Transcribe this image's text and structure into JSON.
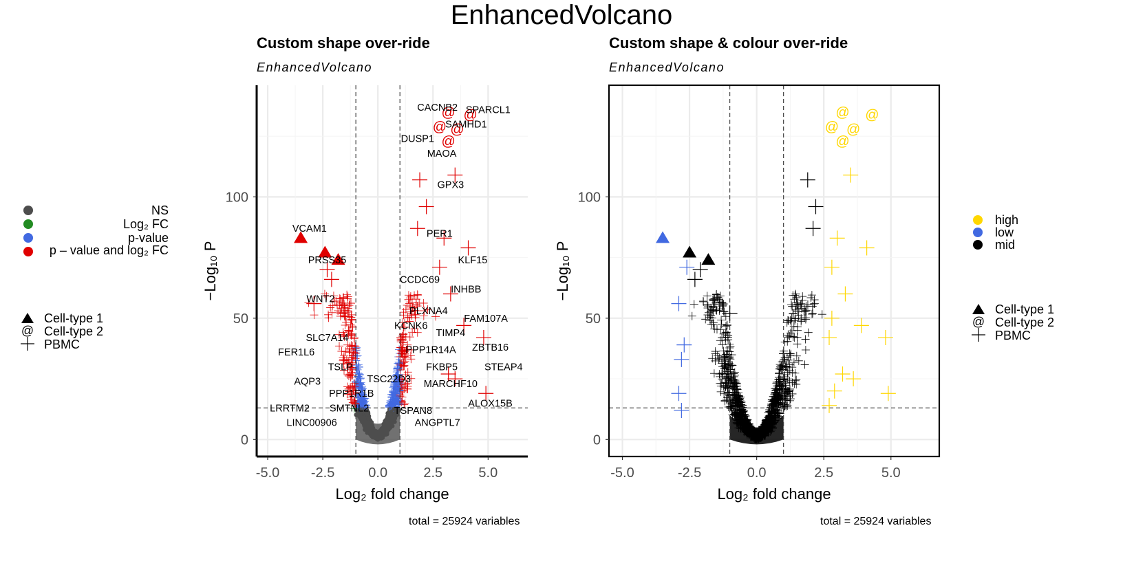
{
  "main_title": "EnhancedVolcano",
  "legend_left": {
    "colour_entries": [
      {
        "label": "NS",
        "color": "#4d4d4d"
      },
      {
        "label": "Log₂ FC",
        "color": "#228B22"
      },
      {
        "label": "p-value",
        "color": "#4169E1"
      },
      {
        "label": "p – value and log₂ FC",
        "color": "#e00000"
      }
    ],
    "shape_entries": [
      {
        "label": "Cell-type 1",
        "glyph": "triangle"
      },
      {
        "label": "Cell-type 2",
        "glyph": "@"
      },
      {
        "label": "PBMC",
        "glyph": "+"
      }
    ]
  },
  "legend_right": {
    "colour_entries": [
      {
        "label": "high",
        "color": "#FFD700"
      },
      {
        "label": "low",
        "color": "#4169E1"
      },
      {
        "label": "mid",
        "color": "#000000"
      }
    ],
    "shape_entries": [
      {
        "label": "Cell-type 1",
        "glyph": "triangle"
      },
      {
        "label": "Cell-type 2",
        "glyph": "@"
      },
      {
        "label": "PBMC",
        "glyph": "+"
      }
    ]
  },
  "chart_data": [
    {
      "type": "scatter",
      "title": "Custom shape over-ride",
      "subtitle": "EnhancedVolcano",
      "xlabel": "Log₂ fold change",
      "ylabel": "−Log₁₀ P",
      "xlim": [
        -5.5,
        6.8
      ],
      "ylim": [
        -7,
        146
      ],
      "xticks": [
        "-5.0",
        "-2.5",
        "0.0",
        "2.5",
        "5.0"
      ],
      "xtick_values": [
        -5,
        -2.5,
        0,
        2.5,
        5
      ],
      "yticks": [
        "0",
        "50",
        "100"
      ],
      "ytick_values": [
        0,
        50,
        100
      ],
      "fc_cutoff": 1,
      "p_cutoff_y": 13,
      "caption": "total = 25924 variables",
      "highlighted_points": [
        {
          "x": -3.5,
          "y": 83,
          "shape": "triangle",
          "color": "#e00000"
        },
        {
          "x": -2.4,
          "y": 77,
          "shape": "triangle",
          "color": "#e00000"
        },
        {
          "x": -1.8,
          "y": 74,
          "shape": "triangle",
          "color": "#e00000"
        },
        {
          "x": 3.2,
          "y": 135,
          "shape": "@",
          "color": "#e00000"
        },
        {
          "x": 4.2,
          "y": 134,
          "shape": "@",
          "color": "#e00000"
        },
        {
          "x": 2.8,
          "y": 129,
          "shape": "@",
          "color": "#e00000"
        },
        {
          "x": 3.6,
          "y": 128,
          "shape": "@",
          "color": "#e00000"
        },
        {
          "x": 3.2,
          "y": 123,
          "shape": "@",
          "color": "#e00000"
        },
        {
          "x": 3.5,
          "y": 109,
          "shape": "+",
          "color": "#e00000"
        },
        {
          "x": 1.9,
          "y": 107,
          "shape": "+",
          "color": "#e00000"
        },
        {
          "x": 2.2,
          "y": 96,
          "shape": "+",
          "color": "#e00000"
        },
        {
          "x": 1.8,
          "y": 87,
          "shape": "+",
          "color": "#e00000"
        },
        {
          "x": 3.0,
          "y": 83,
          "shape": "+",
          "color": "#e00000"
        },
        {
          "x": 4.1,
          "y": 79,
          "shape": "+",
          "color": "#e00000"
        },
        {
          "x": 2.8,
          "y": 71,
          "shape": "+",
          "color": "#e00000"
        },
        {
          "x": 3.3,
          "y": 60,
          "shape": "+",
          "color": "#e00000"
        },
        {
          "x": 3.9,
          "y": 47,
          "shape": "+",
          "color": "#e00000"
        },
        {
          "x": 4.8,
          "y": 42,
          "shape": "+",
          "color": "#e00000"
        },
        {
          "x": 3.2,
          "y": 27,
          "shape": "+",
          "color": "#e00000"
        },
        {
          "x": 3.5,
          "y": 25,
          "shape": "+",
          "color": "#e00000"
        },
        {
          "x": 4.9,
          "y": 19,
          "shape": "+",
          "color": "#e00000"
        },
        {
          "x": -2.9,
          "y": 56,
          "shape": "+",
          "color": "#e00000"
        },
        {
          "x": -2.3,
          "y": 70,
          "shape": "+",
          "color": "#e00000"
        },
        {
          "x": -2.1,
          "y": 66,
          "shape": "+",
          "color": "#e00000"
        }
      ],
      "labels": [
        {
          "text": "CACNB2",
          "x": 2.7,
          "y": 137
        },
        {
          "text": "SPARCL1",
          "x": 5.0,
          "y": 136
        },
        {
          "text": "SAMHD1",
          "x": 4.0,
          "y": 130
        },
        {
          "text": "DUSP1",
          "x": 1.8,
          "y": 124
        },
        {
          "text": "MAOA",
          "x": 2.9,
          "y": 118
        },
        {
          "text": "GPX3",
          "x": 3.3,
          "y": 105
        },
        {
          "text": "PER1",
          "x": 2.8,
          "y": 85
        },
        {
          "text": "KLF15",
          "x": 4.3,
          "y": 74
        },
        {
          "text": "CCDC69",
          "x": 1.9,
          "y": 66
        },
        {
          "text": "INHBB",
          "x": 4.0,
          "y": 62
        },
        {
          "text": "PLXNA4",
          "x": 2.3,
          "y": 53
        },
        {
          "text": "FAM107A",
          "x": 4.9,
          "y": 50
        },
        {
          "text": "KCNK6",
          "x": 1.5,
          "y": 47
        },
        {
          "text": "TIMP4",
          "x": 3.3,
          "y": 44
        },
        {
          "text": "ZBTB16",
          "x": 5.1,
          "y": 38
        },
        {
          "text": "PPP1R14A",
          "x": 2.4,
          "y": 37
        },
        {
          "text": "FKBP5",
          "x": 2.9,
          "y": 30
        },
        {
          "text": "STEAP4",
          "x": 5.7,
          "y": 30
        },
        {
          "text": "TSC22D3",
          "x": 0.5,
          "y": 25
        },
        {
          "text": "MARCHF10",
          "x": 3.3,
          "y": 23
        },
        {
          "text": "ALOX15B",
          "x": 5.1,
          "y": 15
        },
        {
          "text": "TSPAN8",
          "x": 1.6,
          "y": 12
        },
        {
          "text": "ANGPTL7",
          "x": 2.7,
          "y": 7
        },
        {
          "text": "VCAM1",
          "x": -3.1,
          "y": 87
        },
        {
          "text": "PRSS35",
          "x": -2.3,
          "y": 74
        },
        {
          "text": "WNT2",
          "x": -2.6,
          "y": 58
        },
        {
          "text": "SLC7A14",
          "x": -2.3,
          "y": 42
        },
        {
          "text": "FER1L6",
          "x": -3.7,
          "y": 36
        },
        {
          "text": "TSLP",
          "x": -1.7,
          "y": 30
        },
        {
          "text": "AQP3",
          "x": -3.2,
          "y": 24
        },
        {
          "text": "PPP1R1B",
          "x": -1.2,
          "y": 19
        },
        {
          "text": "LRRTM2",
          "x": -4.0,
          "y": 13
        },
        {
          "text": "SMTNL2",
          "x": -1.3,
          "y": 13
        },
        {
          "text": "LINC00906",
          "x": -3.0,
          "y": 7
        }
      ]
    },
    {
      "type": "scatter",
      "title": "Custom shape & colour over-ride",
      "subtitle": "EnhancedVolcano",
      "xlabel": "Log₂ fold change",
      "ylabel": "−Log₁₀ P",
      "xlim": [
        -5.5,
        6.8
      ],
      "ylim": [
        -7,
        146
      ],
      "xticks": [
        "-5.0",
        "-2.5",
        "0.0",
        "2.5",
        "5.0"
      ],
      "xtick_values": [
        -5,
        -2.5,
        0,
        2.5,
        5
      ],
      "yticks": [
        "0",
        "50",
        "100"
      ],
      "ytick_values": [
        0,
        50,
        100
      ],
      "fc_cutoff": 1,
      "p_cutoff_y": 13,
      "caption": "total = 25924 variables",
      "highlighted_points": [
        {
          "x": -3.5,
          "y": 83,
          "shape": "triangle",
          "color": "#4169E1"
        },
        {
          "x": -2.5,
          "y": 77,
          "shape": "triangle",
          "color": "#000000"
        },
        {
          "x": -1.8,
          "y": 74,
          "shape": "triangle",
          "color": "#000000"
        },
        {
          "x": 3.2,
          "y": 135,
          "shape": "@",
          "color": "#FFD700"
        },
        {
          "x": 4.3,
          "y": 134,
          "shape": "@",
          "color": "#FFD700"
        },
        {
          "x": 2.8,
          "y": 129,
          "shape": "@",
          "color": "#FFD700"
        },
        {
          "x": 3.6,
          "y": 128,
          "shape": "@",
          "color": "#FFD700"
        },
        {
          "x": 3.2,
          "y": 123,
          "shape": "@",
          "color": "#FFD700"
        },
        {
          "x": 3.5,
          "y": 109,
          "shape": "+",
          "color": "#FFD700"
        },
        {
          "x": 3.0,
          "y": 83,
          "shape": "+",
          "color": "#FFD700"
        },
        {
          "x": 4.1,
          "y": 79,
          "shape": "+",
          "color": "#FFD700"
        },
        {
          "x": 2.8,
          "y": 71,
          "shape": "+",
          "color": "#FFD700"
        },
        {
          "x": 3.3,
          "y": 60,
          "shape": "+",
          "color": "#FFD700"
        },
        {
          "x": 3.9,
          "y": 47,
          "shape": "+",
          "color": "#FFD700"
        },
        {
          "x": 4.8,
          "y": 42,
          "shape": "+",
          "color": "#FFD700"
        },
        {
          "x": 3.2,
          "y": 27,
          "shape": "+",
          "color": "#FFD700"
        },
        {
          "x": 3.6,
          "y": 25,
          "shape": "+",
          "color": "#FFD700"
        },
        {
          "x": 4.9,
          "y": 19,
          "shape": "+",
          "color": "#FFD700"
        },
        {
          "x": 2.8,
          "y": 50,
          "shape": "+",
          "color": "#FFD700"
        },
        {
          "x": 2.7,
          "y": 42,
          "shape": "+",
          "color": "#FFD700"
        },
        {
          "x": 2.9,
          "y": 20,
          "shape": "+",
          "color": "#FFD700"
        },
        {
          "x": 2.7,
          "y": 14,
          "shape": "+",
          "color": "#FFD700"
        },
        {
          "x": -2.6,
          "y": 71,
          "shape": "+",
          "color": "#4169E1"
        },
        {
          "x": -2.9,
          "y": 56,
          "shape": "+",
          "color": "#4169E1"
        },
        {
          "x": -2.7,
          "y": 39,
          "shape": "+",
          "color": "#4169E1"
        },
        {
          "x": -2.8,
          "y": 33,
          "shape": "+",
          "color": "#4169E1"
        },
        {
          "x": -2.9,
          "y": 19,
          "shape": "+",
          "color": "#4169E1"
        },
        {
          "x": -2.8,
          "y": 12,
          "shape": "+",
          "color": "#4169E1"
        },
        {
          "x": 1.9,
          "y": 107,
          "shape": "+",
          "color": "#000000"
        },
        {
          "x": 2.2,
          "y": 96,
          "shape": "+",
          "color": "#000000"
        },
        {
          "x": 2.1,
          "y": 87,
          "shape": "+",
          "color": "#000000"
        },
        {
          "x": -2.3,
          "y": 66,
          "shape": "+",
          "color": "#000000"
        },
        {
          "x": -2.1,
          "y": 70,
          "shape": "+",
          "color": "#000000"
        },
        {
          "x": -1.0,
          "y": 52,
          "shape": "+",
          "color": "#000000"
        }
      ]
    }
  ]
}
